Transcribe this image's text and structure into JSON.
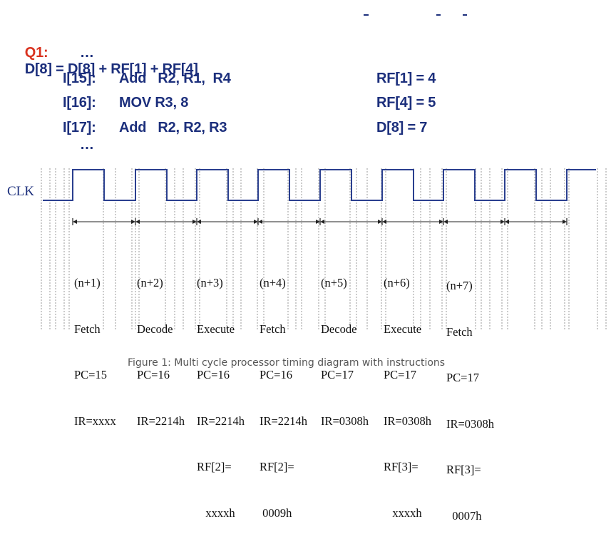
{
  "question": {
    "label": "Q1:",
    "expression": "D[8] = D[8] + RF[1] + RF[4]"
  },
  "ellipsis": "…",
  "instructions": [
    {
      "addr": "I[15]:",
      "op": "Add   R2, R1,  R4",
      "reg": "RF[1] = 4"
    },
    {
      "addr": "I[16]:",
      "op": "MOV R3, 8",
      "reg": "RF[4] = 5"
    },
    {
      "addr": "I[17]:",
      "op": "Add   R2, R2, R3",
      "reg": "D[8] = 7"
    }
  ],
  "clock": {
    "label": "CLK",
    "line_color": "#2a3f8f"
  },
  "cycles": [
    {
      "lines": [
        "(n+1)",
        "Fetch",
        "PC=15",
        "IR=xxxx"
      ]
    },
    {
      "lines": [
        "(n+2)",
        "Decode",
        "PC=16",
        "IR=2214h"
      ]
    },
    {
      "lines": [
        "(n+3)",
        "Execute",
        "PC=16",
        "IR=2214h",
        "RF[2]=",
        "   xxxxh"
      ]
    },
    {
      "lines": [
        "(n+4)",
        "Fetch",
        "PC=16",
        "IR=2214h",
        "RF[2]=",
        " 0009h"
      ]
    },
    {
      "lines": [
        "(n+5)",
        "Decode",
        "PC=17",
        "IR=0308h"
      ]
    },
    {
      "lines": [
        "(n+6)",
        "Execute",
        "PC=17",
        "IR=0308h",
        "RF[3]=",
        "   xxxxh"
      ]
    },
    {
      "lines": [
        "(n+7)",
        "Fetch",
        "PC=17",
        "IR=0308h",
        "RF[3]=",
        "  0007h"
      ]
    }
  ],
  "caption": "Figure 1: Multi cycle processor timing diagram with instructions"
}
